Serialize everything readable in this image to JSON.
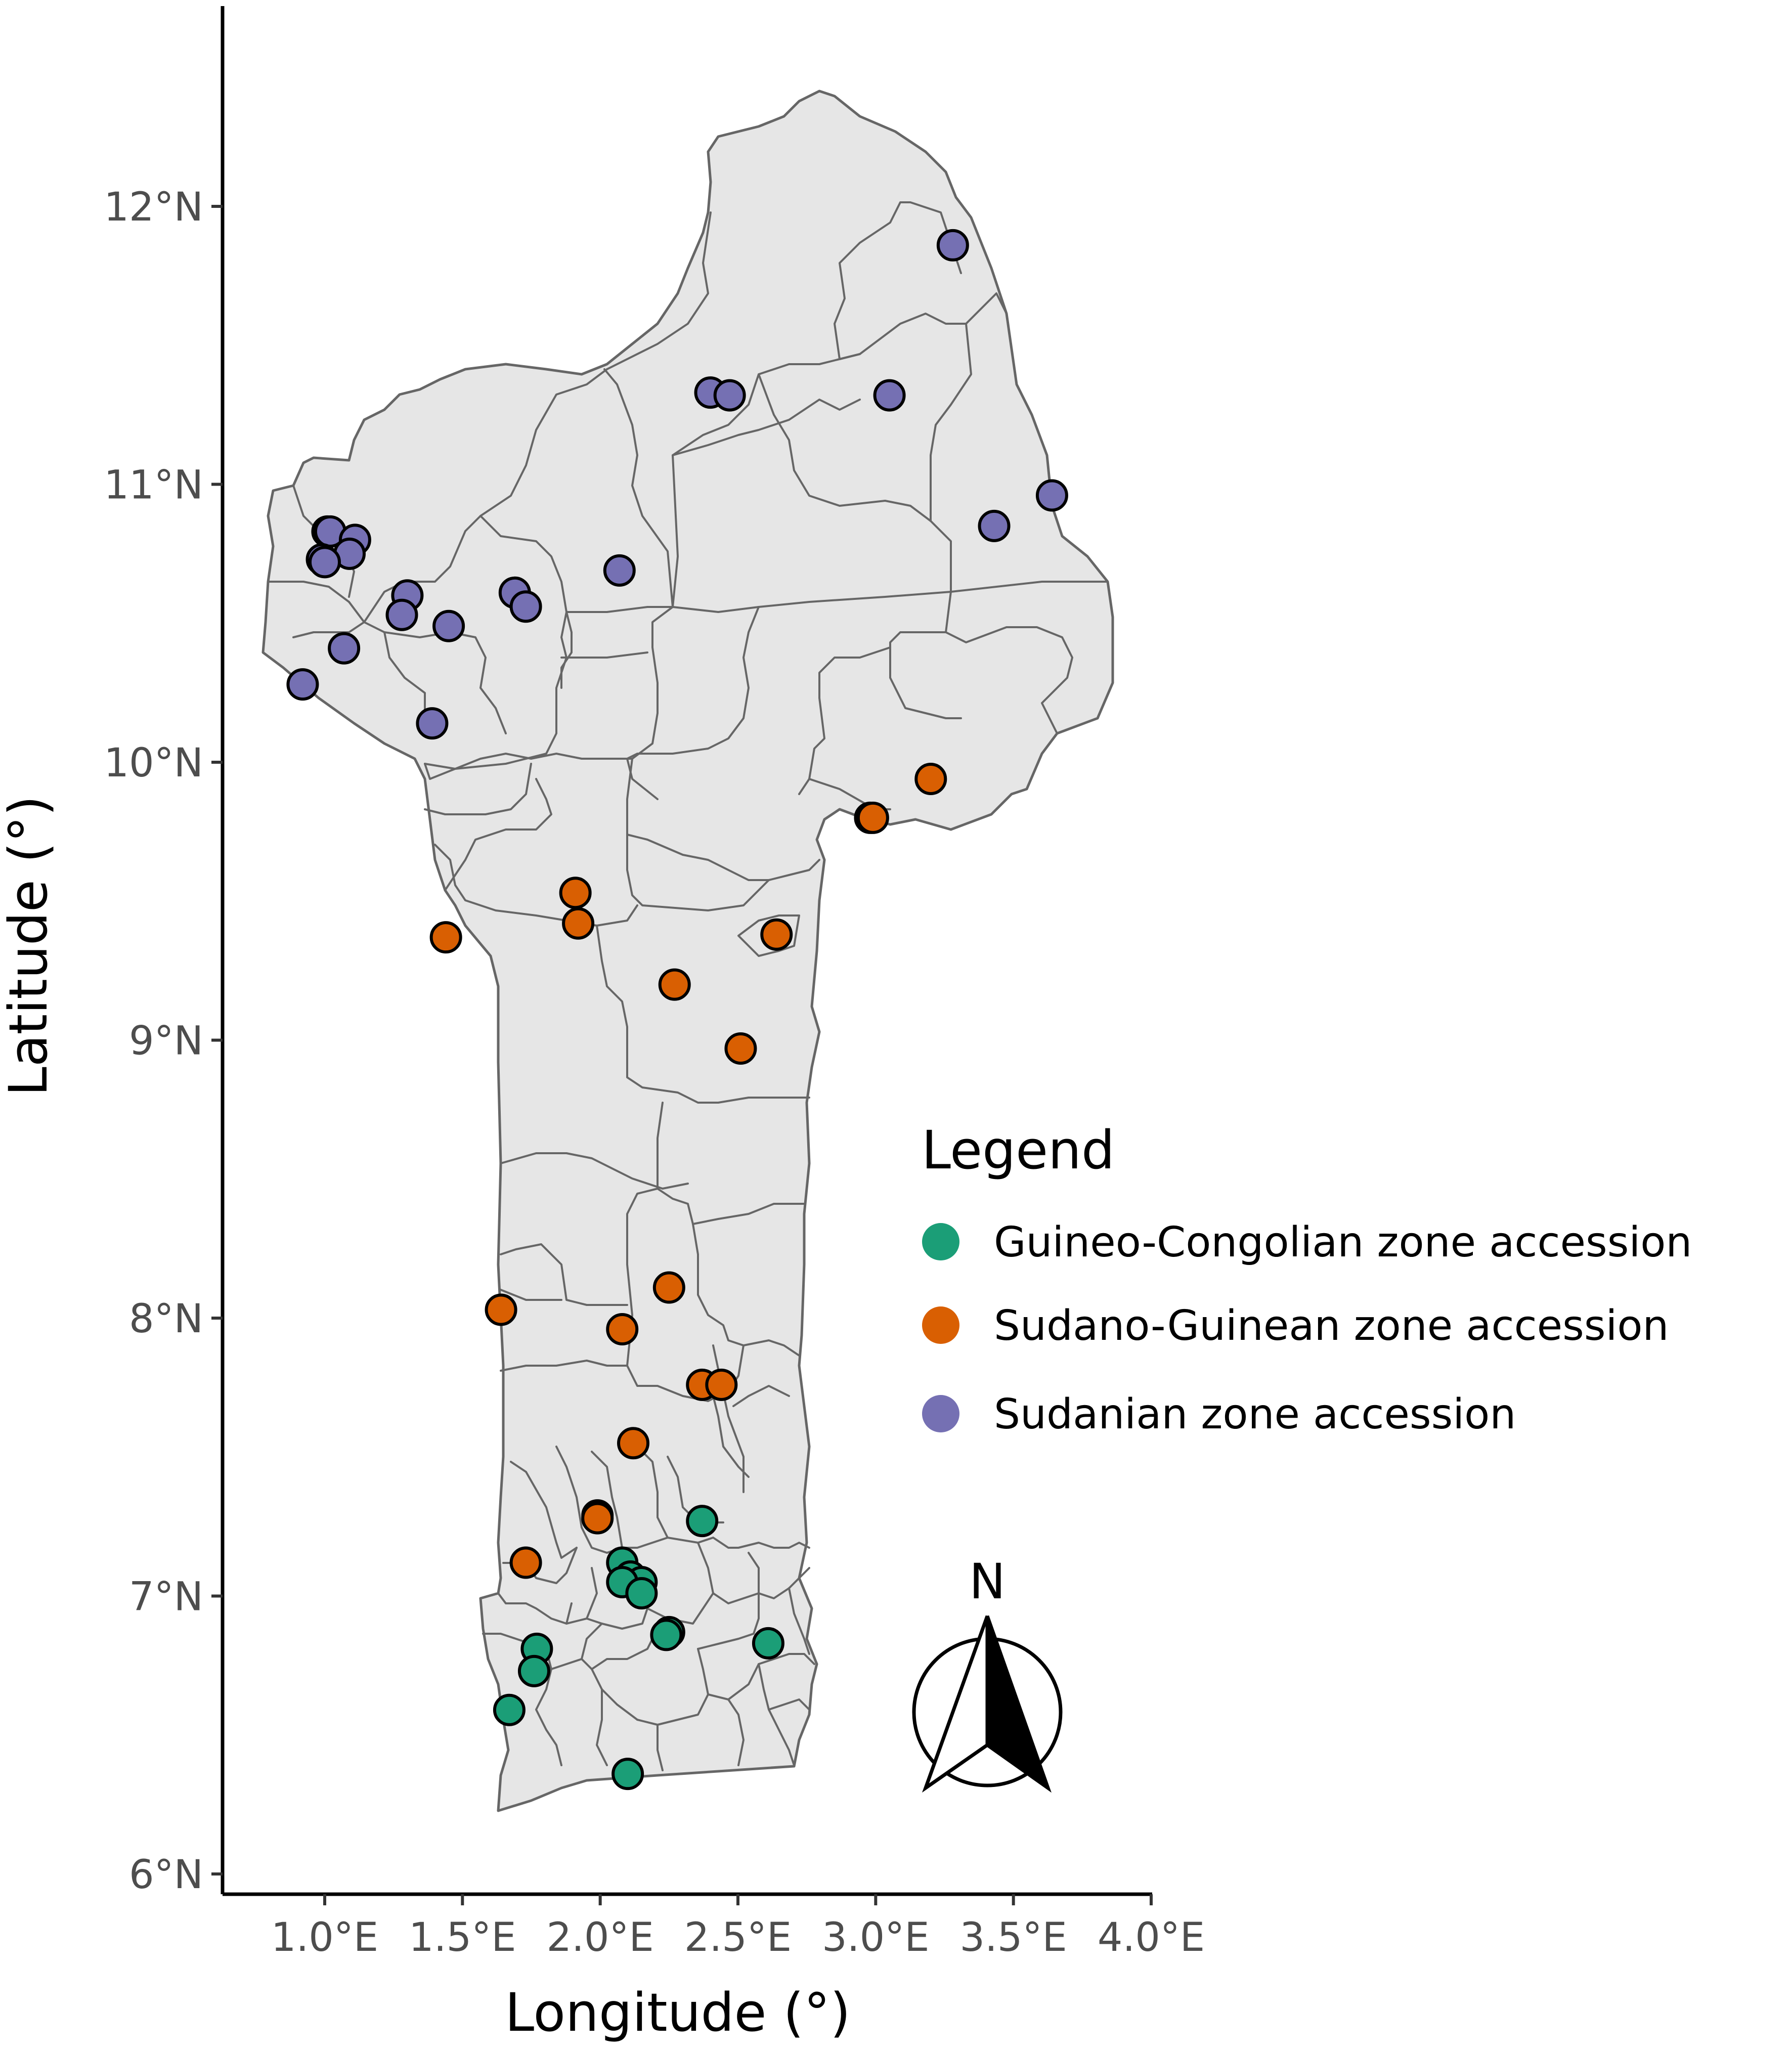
{
  "chart_data": {
    "type": "scatter",
    "xlabel": "Longitude (°)",
    "ylabel": "Latitude (°)",
    "xlim": [
      0.6,
      4.0
    ],
    "ylim": [
      5.95,
      12.72
    ],
    "x_ticks": [
      1.0,
      1.5,
      2.0,
      2.5,
      3.0,
      3.5,
      4.0
    ],
    "x_tick_labels": [
      "1.0°E",
      "1.5°E",
      "2.0°E",
      "2.5°E",
      "3.0°E",
      "3.5°E",
      "4.0°E"
    ],
    "y_ticks": [
      6,
      7,
      8,
      9,
      10,
      11,
      12
    ],
    "y_tick_labels": [
      "6°N",
      "7°N",
      "8°N",
      "9°N",
      "10°N",
      "11°N",
      "12°N"
    ],
    "grid": false,
    "legend": {
      "title": "Legend",
      "position": "right",
      "entries": [
        {
          "label": "Guineo-Congolian zone accession",
          "color": "#1b9e77"
        },
        {
          "label": "Sudano-Guinean zone accession",
          "color": "#d95f02"
        },
        {
          "label": "Sudanian zone accession",
          "color": "#7570b3"
        }
      ]
    },
    "north_arrow": {
      "label": "N"
    },
    "series": [
      {
        "name": "Guineo-Congolian zone accession",
        "color": "#1b9e77",
        "points": [
          [
            2.37,
            7.27
          ],
          [
            2.08,
            7.12
          ],
          [
            2.11,
            7.07
          ],
          [
            2.15,
            7.05
          ],
          [
            2.08,
            7.05
          ],
          [
            2.15,
            7.01
          ],
          [
            2.25,
            6.87
          ],
          [
            2.24,
            6.86
          ],
          [
            2.61,
            6.83
          ],
          [
            1.77,
            6.81
          ],
          [
            1.76,
            6.73
          ],
          [
            1.67,
            6.59
          ],
          [
            2.1,
            6.36
          ]
        ]
      },
      {
        "name": "Sudano-Guinean zone accession",
        "color": "#d95f02",
        "points": [
          [
            3.2,
            9.94
          ],
          [
            2.98,
            9.8
          ],
          [
            2.99,
            9.8
          ],
          [
            1.91,
            9.53
          ],
          [
            1.92,
            9.42
          ],
          [
            1.44,
            9.37
          ],
          [
            2.64,
            9.38
          ],
          [
            2.27,
            9.2
          ],
          [
            2.51,
            8.97
          ],
          [
            2.25,
            8.11
          ],
          [
            1.64,
            8.03
          ],
          [
            2.08,
            7.96
          ],
          [
            2.37,
            7.76
          ],
          [
            2.44,
            7.76
          ],
          [
            2.12,
            7.55
          ],
          [
            1.99,
            7.29
          ],
          [
            1.99,
            7.28
          ],
          [
            1.73,
            7.12
          ]
        ]
      },
      {
        "name": "Sudanian zone accession",
        "color": "#7570b3",
        "points": [
          [
            3.28,
            11.86
          ],
          [
            2.4,
            11.33
          ],
          [
            2.47,
            11.32
          ],
          [
            3.05,
            11.32
          ],
          [
            3.64,
            10.96
          ],
          [
            3.43,
            10.85
          ],
          [
            1.01,
            10.83
          ],
          [
            1.02,
            10.83
          ],
          [
            1.11,
            10.8
          ],
          [
            1.09,
            10.75
          ],
          [
            0.99,
            10.73
          ],
          [
            1.0,
            10.72
          ],
          [
            2.07,
            10.69
          ],
          [
            1.3,
            10.6
          ],
          [
            1.69,
            10.61
          ],
          [
            1.73,
            10.56
          ],
          [
            1.28,
            10.53
          ],
          [
            1.45,
            10.49
          ],
          [
            1.07,
            10.41
          ],
          [
            0.92,
            10.28
          ],
          [
            1.39,
            10.14
          ]
        ]
      }
    ]
  }
}
